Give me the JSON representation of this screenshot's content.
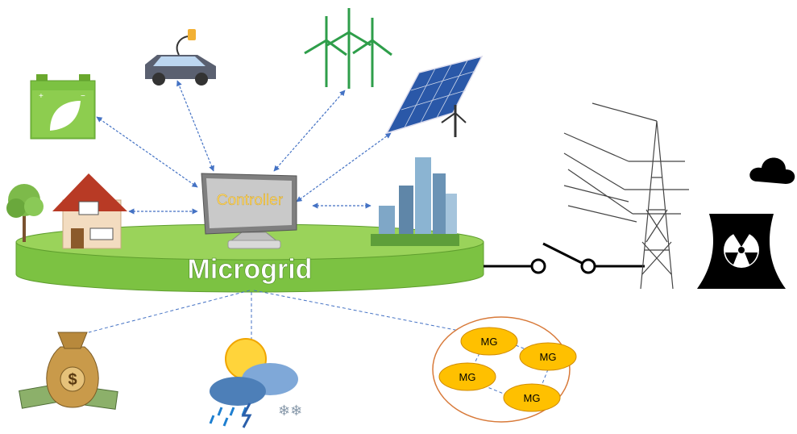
{
  "controller": {
    "label": "Controller"
  },
  "platform": {
    "label": "Microgrid"
  },
  "network": {
    "nodes": [
      {
        "label": "MG"
      },
      {
        "label": "MG"
      },
      {
        "label": "MG"
      },
      {
        "label": "MG"
      }
    ]
  }
}
